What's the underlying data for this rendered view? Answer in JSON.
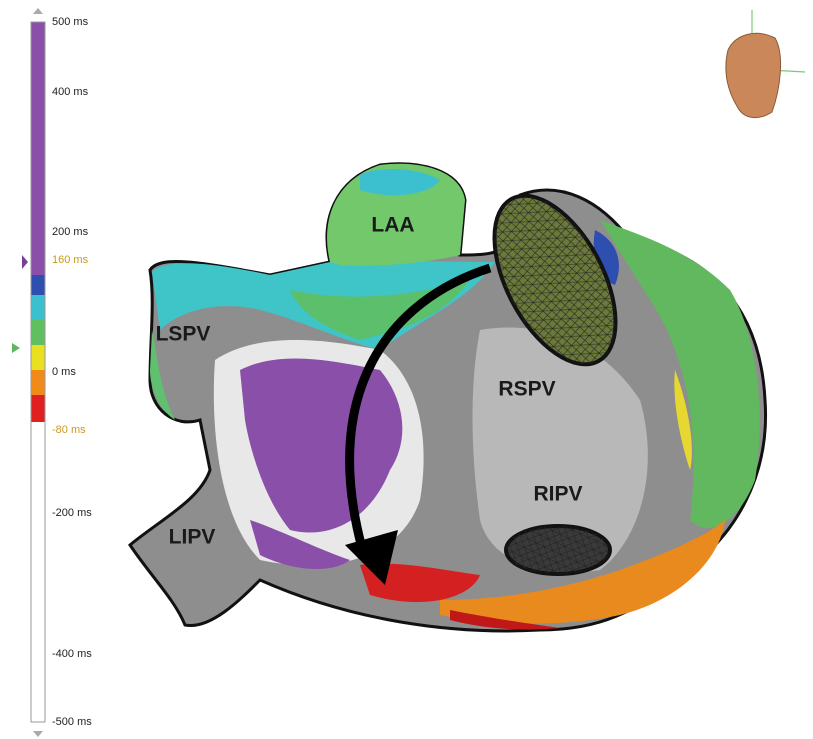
{
  "scale": {
    "ticks": [
      "500 ms",
      "400 ms",
      "200 ms",
      "0 ms",
      "-200 ms",
      "-400 ms",
      "-500 ms"
    ],
    "window": [
      "160 ms",
      "-80 ms"
    ]
  },
  "anatomy": {
    "labels": [
      "LAA",
      "LSPV",
      "RSPV",
      "RIPV",
      "LIPV"
    ]
  }
}
